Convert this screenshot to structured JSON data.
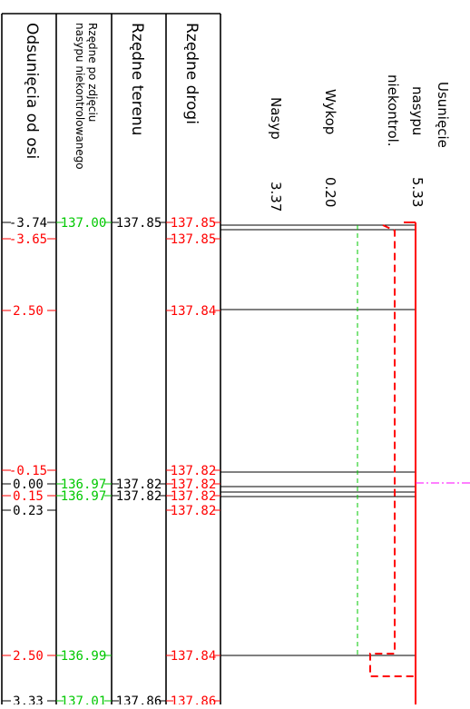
{
  "colors": {
    "line": "#000000",
    "red": "#ff0000",
    "green": "#00c800",
    "axis": "#ff00ff"
  },
  "headers": {
    "offset": "Odsunięcia od osi",
    "uncontrolled_line1": "Rzędne po zdjęciu",
    "uncontrolled_line2": "nasypu niekontrolowanego",
    "terrain": "Rzędne terenu",
    "road": "Rzędne drogi"
  },
  "summary": {
    "fill_label": "Nasyp",
    "fill_value": "3.37",
    "cut_label": "Wykop",
    "cut_value": "0.20",
    "removal_line1": "Usunięcie",
    "removal_line2": "nasypu",
    "removal_line3": "niekontrol.",
    "removal_value": "5.33"
  },
  "rows": [
    {
      "offset": "-3.74",
      "offset_color": "black",
      "uncontrolled": "137.00",
      "terrain": "137.85",
      "road": "137.85",
      "road_color": "red"
    },
    {
      "offset": "-3.65",
      "offset_color": "red",
      "uncontrolled": "",
      "terrain": "",
      "road": "137.85",
      "road_color": "red"
    },
    {
      "offset": "2.50",
      "offset_color": "red",
      "uncontrolled": "",
      "terrain": "",
      "road": "137.84",
      "road_color": "red"
    },
    {
      "offset": "-0.15",
      "offset_color": "red",
      "uncontrolled": "",
      "terrain": "",
      "road": "137.82",
      "road_color": "red"
    },
    {
      "offset": "0.00",
      "offset_color": "black",
      "uncontrolled": "136.97",
      "terrain": "137.82",
      "road": "137.82",
      "road_color": "red"
    },
    {
      "offset": "0.15",
      "offset_color": "red",
      "uncontrolled": "136.97",
      "terrain": "137.82",
      "road": "137.82",
      "road_color": "red"
    },
    {
      "offset": "0.23",
      "offset_color": "black",
      "uncontrolled": "",
      "terrain": "",
      "road": "137.82",
      "road_color": "red"
    },
    {
      "offset": "2.50",
      "offset_color": "red",
      "uncontrolled": "136.99",
      "terrain": "",
      "road": "137.84",
      "road_color": "red"
    },
    {
      "offset": "3.33",
      "offset_color": "black",
      "uncontrolled": "137.01",
      "terrain": "137.86",
      "road": "137.86",
      "road_color": "red"
    }
  ]
}
